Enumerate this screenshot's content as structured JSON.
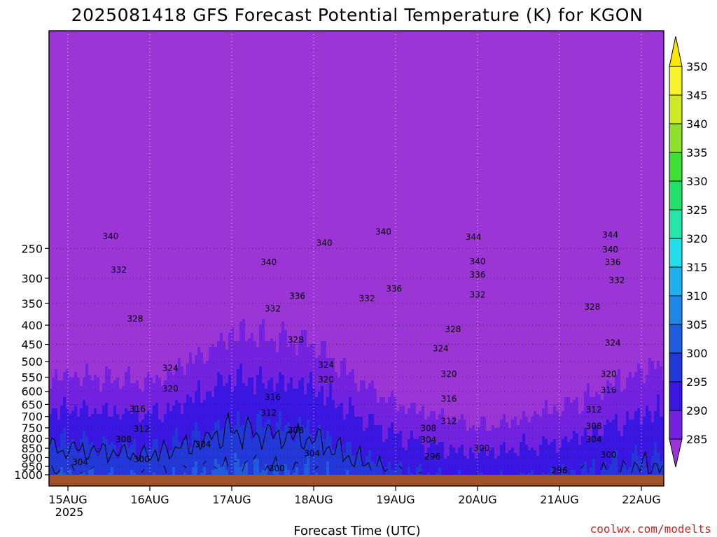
{
  "chart_data": {
    "type": "heatmap",
    "title": "2025081418 GFS Forecast Potential Temperature (K) for KGON",
    "xlabel": "Forecast Time (UTC)",
    "ylabel": "",
    "credit": "coolwx.com/modelts",
    "x_ticks": [
      "15AUG",
      "16AUG",
      "17AUG",
      "18AUG",
      "19AUG",
      "20AUG",
      "21AUG",
      "22AUG"
    ],
    "x_year": "2025",
    "xlim_days": [
      -0.05,
      7.1
    ],
    "y_ticks": [
      250,
      300,
      350,
      400,
      450,
      500,
      550,
      600,
      650,
      700,
      750,
      800,
      850,
      900,
      950,
      1000
    ],
    "y_scale": "log-pressure",
    "ylim_hpa": [
      1010,
      200
    ],
    "grid": "dotted",
    "colorbar": {
      "levels": [
        285,
        290,
        295,
        300,
        305,
        310,
        315,
        320,
        325,
        330,
        335,
        340,
        345,
        350
      ],
      "colors": [
        "#9b35d6",
        "#7322e0",
        "#3a16e2",
        "#2338d8",
        "#1f5dde",
        "#1e86e6",
        "#1fb1ee",
        "#22dee6",
        "#23e6aa",
        "#22e06a",
        "#3fe036",
        "#8fe02c",
        "#cfea24",
        "#f6f22c",
        "#fbe800"
      ],
      "extend": "both"
    },
    "series": [
      {
        "name": "theta_at_pressure",
        "pressure_hpa": 1000,
        "values": [
          300,
          299,
          301,
          300,
          296,
          294,
          295,
          297
        ]
      },
      {
        "name": "theta_at_pressure",
        "pressure_hpa": 850,
        "values": [
          304,
          303,
          304,
          303,
          300,
          299,
          299,
          300
        ]
      },
      {
        "name": "theta_at_pressure",
        "pressure_hpa": 700,
        "values": [
          311,
          310,
          310,
          309,
          308,
          309,
          309,
          309
        ]
      },
      {
        "name": "theta_at_pressure",
        "pressure_hpa": 500,
        "values": [
          322,
          322,
          323,
          325,
          322,
          319,
          318,
          320
        ]
      },
      {
        "name": "theta_at_pressure",
        "pressure_hpa": 300,
        "values": [
          334,
          332,
          335,
          338,
          340,
          334,
          332,
          331
        ]
      }
    ],
    "contour_labels": [
      {
        "text": "340",
        "day": 0.52,
        "p": 232
      },
      {
        "text": "340",
        "day": 3.13,
        "p": 242
      },
      {
        "text": "340",
        "day": 3.85,
        "p": 226
      },
      {
        "text": "344",
        "day": 4.95,
        "p": 233
      },
      {
        "text": "344",
        "day": 6.62,
        "p": 230
      },
      {
        "text": "340",
        "day": 2.45,
        "p": 272
      },
      {
        "text": "340",
        "day": 5.0,
        "p": 271
      },
      {
        "text": "340",
        "day": 6.62,
        "p": 252
      },
      {
        "text": "336",
        "day": 6.65,
        "p": 272
      },
      {
        "text": "332",
        "day": 0.62,
        "p": 285
      },
      {
        "text": "336",
        "day": 5.0,
        "p": 294
      },
      {
        "text": "332",
        "day": 6.7,
        "p": 304
      },
      {
        "text": "336",
        "day": 2.8,
        "p": 335
      },
      {
        "text": "336",
        "day": 3.98,
        "p": 320
      },
      {
        "text": "332",
        "day": 3.65,
        "p": 340
      },
      {
        "text": "332",
        "day": 5.0,
        "p": 332
      },
      {
        "text": "332",
        "day": 2.5,
        "p": 362
      },
      {
        "text": "328",
        "day": 6.4,
        "p": 358
      },
      {
        "text": "328",
        "day": 0.82,
        "p": 385
      },
      {
        "text": "328",
        "day": 4.7,
        "p": 410
      },
      {
        "text": "328",
        "day": 2.78,
        "p": 438
      },
      {
        "text": "324",
        "day": 4.55,
        "p": 462
      },
      {
        "text": "324",
        "day": 6.65,
        "p": 446
      },
      {
        "text": "324",
        "day": 1.25,
        "p": 520
      },
      {
        "text": "324",
        "day": 3.15,
        "p": 510
      },
      {
        "text": "320",
        "day": 4.65,
        "p": 540
      },
      {
        "text": "320",
        "day": 6.6,
        "p": 540
      },
      {
        "text": "320",
        "day": 3.15,
        "p": 558
      },
      {
        "text": "320",
        "day": 1.25,
        "p": 590
      },
      {
        "text": "316",
        "day": 2.5,
        "p": 622
      },
      {
        "text": "316",
        "day": 4.65,
        "p": 628
      },
      {
        "text": "316",
        "day": 6.6,
        "p": 595
      },
      {
        "text": "316",
        "day": 0.85,
        "p": 668
      },
      {
        "text": "312",
        "day": 2.45,
        "p": 685
      },
      {
        "text": "312",
        "day": 4.65,
        "p": 720
      },
      {
        "text": "312",
        "day": 6.42,
        "p": 672
      },
      {
        "text": "312",
        "day": 0.9,
        "p": 755
      },
      {
        "text": "308",
        "day": 2.78,
        "p": 762
      },
      {
        "text": "308",
        "day": 4.4,
        "p": 752
      },
      {
        "text": "308",
        "day": 6.42,
        "p": 742
      },
      {
        "text": "308",
        "day": 0.68,
        "p": 805
      },
      {
        "text": "304",
        "day": 1.65,
        "p": 830
      },
      {
        "text": "304",
        "day": 4.4,
        "p": 808
      },
      {
        "text": "304",
        "day": 6.42,
        "p": 805
      },
      {
        "text": "304",
        "day": 2.98,
        "p": 877
      },
      {
        "text": "304",
        "day": 0.15,
        "p": 925
      },
      {
        "text": "300",
        "day": 0.9,
        "p": 910
      },
      {
        "text": "300",
        "day": 2.55,
        "p": 962
      },
      {
        "text": "300",
        "day": 5.05,
        "p": 850
      },
      {
        "text": "300",
        "day": 6.6,
        "p": 885
      },
      {
        "text": "296",
        "day": 4.45,
        "p": 895
      },
      {
        "text": "296",
        "day": 6.0,
        "p": 975
      }
    ]
  }
}
